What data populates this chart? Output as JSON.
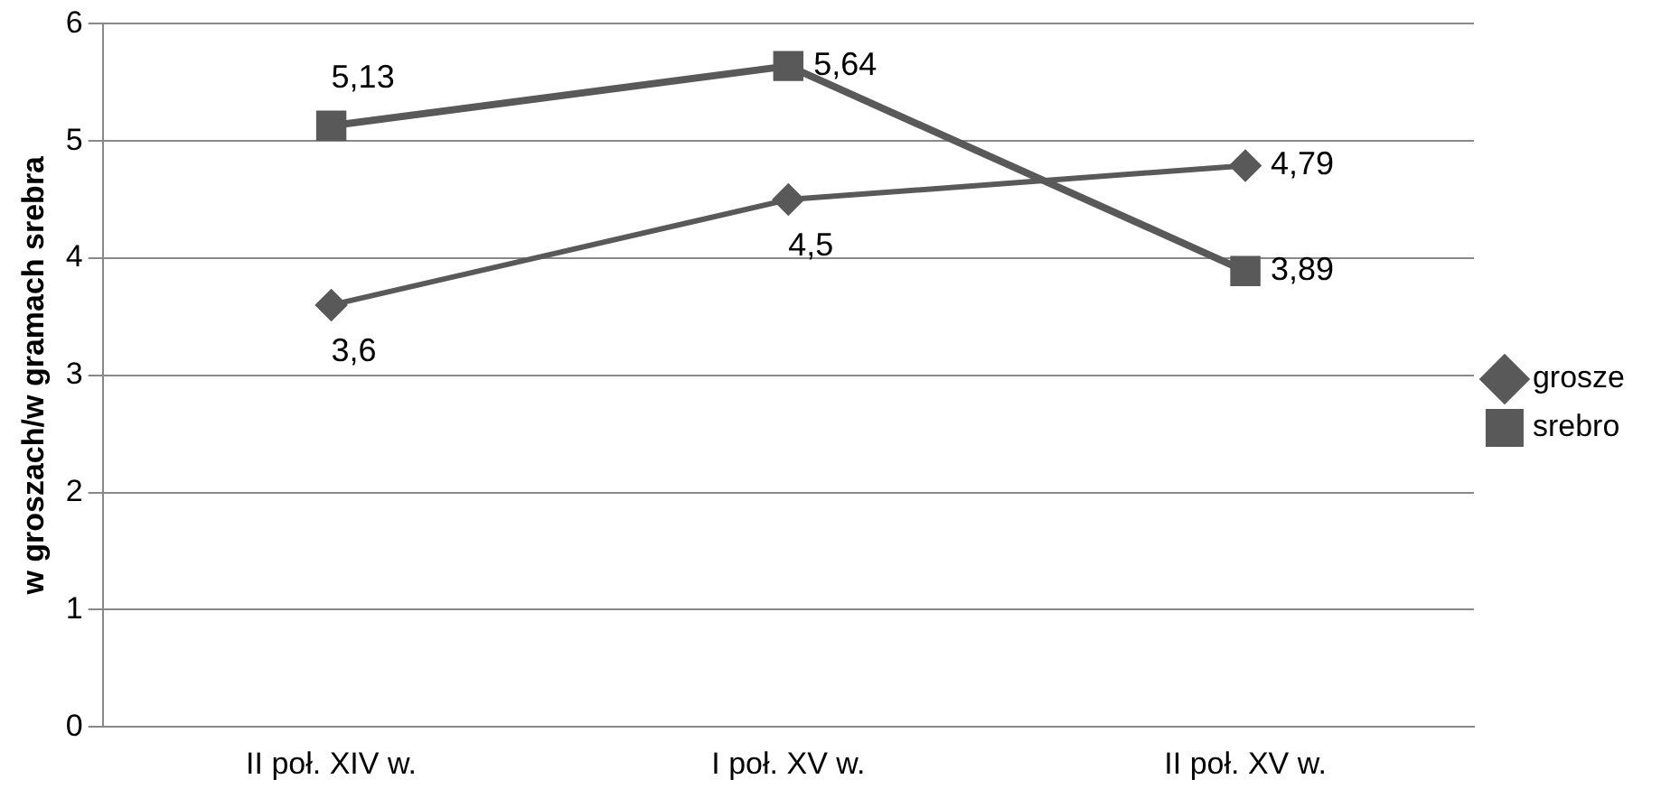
{
  "chart_data": {
    "type": "line",
    "ylabel": "w groszach/w gramach srebra",
    "categories": [
      "II poł. XIV w.",
      "I poł. XV w.",
      "II poł. XV w."
    ],
    "series": [
      {
        "name": "grosze",
        "color": "#595959",
        "values": [
          3.6,
          4.5,
          4.79
        ],
        "value_labels": [
          "3,6",
          "4,5",
          "4,79"
        ],
        "marker": "diamond"
      },
      {
        "name": "srebro",
        "color": "#595959",
        "values": [
          5.13,
          5.64,
          3.89
        ],
        "value_labels": [
          "5,13",
          "5,64",
          "3,89"
        ],
        "marker": "square"
      }
    ],
    "ylim": [
      0,
      6
    ],
    "yticks": [
      0,
      1,
      2,
      3,
      4,
      5,
      6
    ],
    "grid": "y",
    "legend": "right"
  }
}
